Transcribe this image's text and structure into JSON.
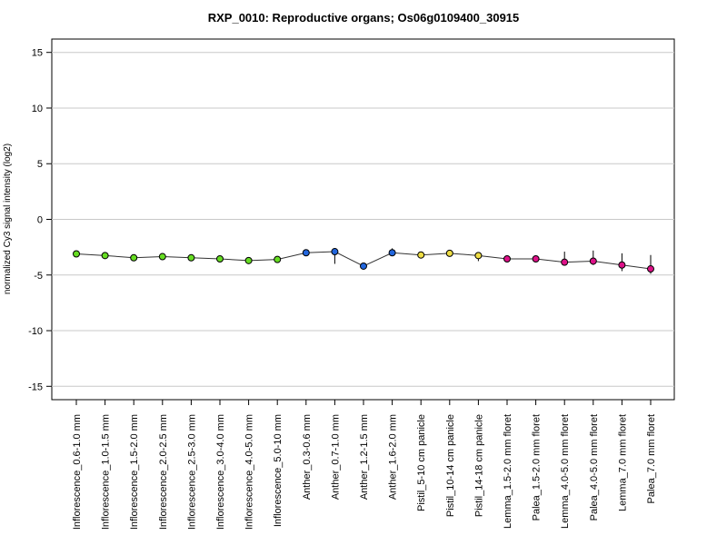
{
  "chart_data": {
    "type": "line",
    "title": "RXP_0010: Reproductive organs; Os06g0109400_30915",
    "xlabel": "",
    "ylabel": "normalized Cy3 signal intensity (log2)",
    "ylim": [
      -16.2,
      16.2
    ],
    "yticks": [
      15,
      10,
      5,
      0,
      -5,
      -10,
      -15
    ],
    "grid": true,
    "categories": [
      "Inflorescence_0.6-1.0 mm",
      "Inflorescence_1.0-1.5 mm",
      "Inflorescence_1.5-2.0 mm",
      "Inflorescence_2.0-2.5 mm",
      "Inflorescence_2.5-3.0 mm",
      "Inflorescence_3.0-4.0 mm",
      "Inflorescence_4.0-5.0 mm",
      "Inflorescence_5.0-10 mm",
      "Anther_0.3-0.6 mm",
      "Anther_0.7-1.0 mm",
      "Anther_1.2-1.5 mm",
      "Anther_1.6-2.0 mm",
      "Pistil_5-10 cm panicle",
      "Pistil_10-14 cm panicle",
      "Pistil_14-18 cm panicle",
      "Lemma_1.5-2.0 mm floret",
      "Palea_1.5-2.0 mm floret",
      "Lemma_4.0-5.0 mm floret",
      "Palea_4.0-5.0 mm floret",
      "Lemma_7.0 mm floret",
      "Palea_7.0 mm floret"
    ],
    "series": [
      {
        "values": [
          -3.1,
          -3.25,
          -3.45,
          -3.35,
          -3.45,
          -3.55,
          -3.7,
          -3.6,
          -3.0,
          -2.9,
          -4.2,
          -3.0,
          -3.2,
          -3.05,
          -3.25,
          -3.55,
          -3.55,
          -3.85,
          -3.75,
          -4.1,
          -4.45
        ],
        "error_low": [
          -3.25,
          -3.4,
          -3.6,
          -3.5,
          -3.6,
          -3.7,
          -3.85,
          -3.75,
          -3.15,
          -4.0,
          -4.45,
          -3.2,
          -3.5,
          -3.2,
          -3.75,
          -3.7,
          -3.7,
          -4.1,
          -4.1,
          -4.65,
          -4.9
        ],
        "error_high": [
          -2.95,
          -3.1,
          -3.3,
          -3.2,
          -3.3,
          -3.4,
          -3.55,
          -3.45,
          -2.85,
          -2.6,
          -3.9,
          -2.6,
          -2.95,
          -2.9,
          -2.95,
          -3.4,
          -3.4,
          -2.9,
          -2.8,
          -3.05,
          -3.2
        ],
        "colors": [
          "#66dd22",
          "#66dd22",
          "#66dd22",
          "#66dd22",
          "#66dd22",
          "#66dd22",
          "#66dd22",
          "#66dd22",
          "#2266dd",
          "#2266dd",
          "#2266dd",
          "#2266dd",
          "#eedd44",
          "#eedd44",
          "#eedd44",
          "#dd1188",
          "#dd1188",
          "#dd1188",
          "#dd1188",
          "#dd1188",
          "#dd1188"
        ]
      }
    ]
  }
}
